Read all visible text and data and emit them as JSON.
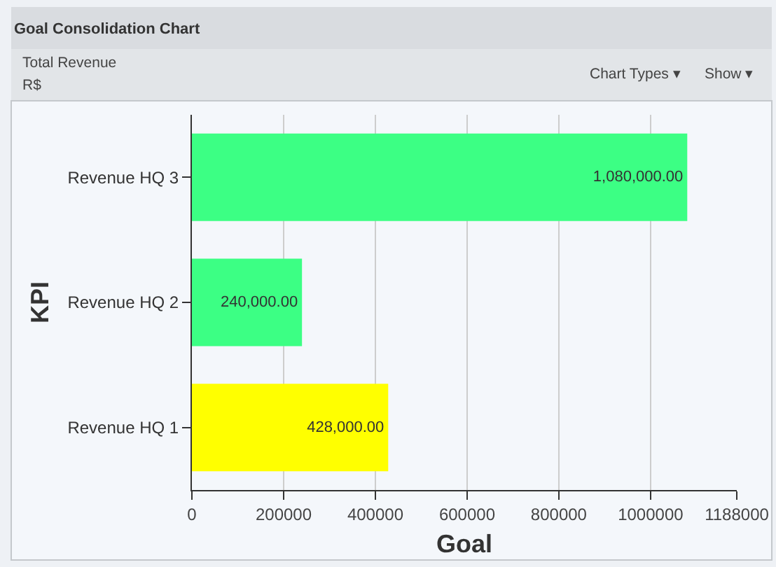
{
  "chart_data": {
    "type": "bar",
    "orientation": "horizontal",
    "title": "Goal Consolidation Chart",
    "subtitle": "Total Revenue",
    "annotations": [
      "R$",
      "Chart Types ▾",
      "Show ▾"
    ],
    "xlabel": "Goal",
    "ylabel": "KPI",
    "categories": [
      "Revenue HQ 3",
      "Revenue HQ 2",
      "Revenue HQ 1"
    ],
    "values": [
      1080000,
      240000,
      428000
    ],
    "colors": [
      "#3cff84",
      "#3cff84",
      "#ffff00"
    ],
    "value_labels": [
      "1,080,000.00",
      "240,000.00",
      "428,000.00"
    ],
    "xlim": [
      0,
      1188000
    ],
    "xticks": [
      0,
      200000,
      400000,
      600000,
      800000,
      1000000,
      1188000
    ],
    "grid": "x"
  }
}
